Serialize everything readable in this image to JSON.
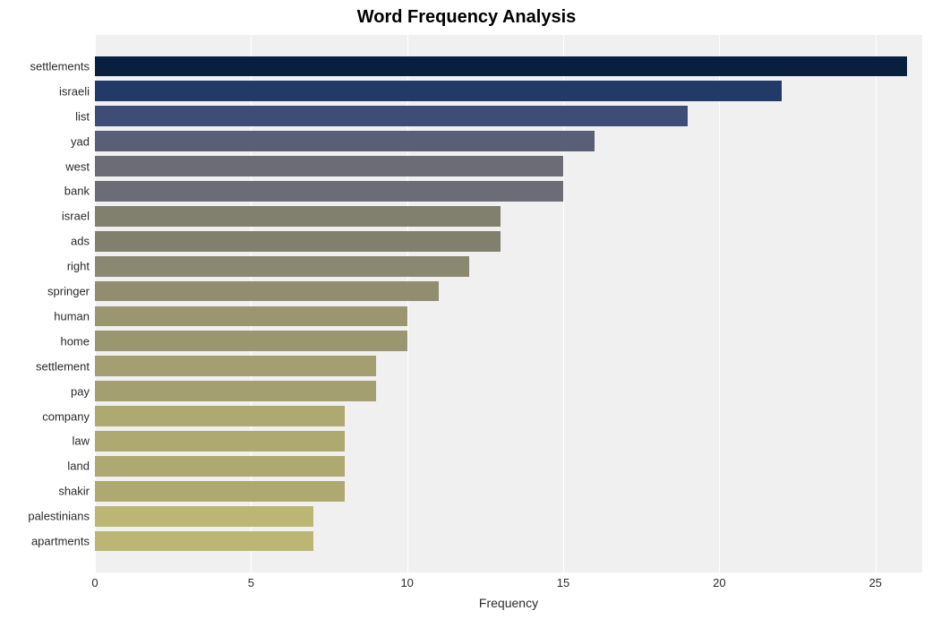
{
  "chart": {
    "type": "bar-horizontal",
    "title": "Word Frequency Analysis",
    "title_fontsize": 20,
    "title_fontweight": "700",
    "xlabel": "Frequency",
    "label_fontsize": 14,
    "tick_fontsize": 13,
    "background_color": "#ffffff",
    "plot_background": "#f0f0f0",
    "grid_color": "#ffffff",
    "xlim": [
      0,
      26.5
    ],
    "xticks": [
      0,
      5,
      10,
      15,
      20,
      25
    ],
    "bar_gap_ratio": 0.18,
    "categories": [
      "settlements",
      "israeli",
      "list",
      "yad",
      "west",
      "bank",
      "israel",
      "ads",
      "right",
      "springer",
      "human",
      "home",
      "settlement",
      "pay",
      "company",
      "law",
      "land",
      "shakir",
      "palestinians",
      "apartments"
    ],
    "values": [
      26,
      22,
      19,
      16,
      15,
      15,
      13,
      13,
      12,
      11,
      10,
      10,
      9,
      9,
      8,
      8,
      8,
      8,
      7,
      7
    ],
    "bar_colors": [
      "#081f3f",
      "#213a68",
      "#3e4d76",
      "#595f76",
      "#6c6c76",
      "#6c6c77",
      "#81806e",
      "#81806e",
      "#8a8870",
      "#908e6f",
      "#9a9670",
      "#9a9670",
      "#a39f70",
      "#a39f70",
      "#aea971",
      "#aea971",
      "#aea971",
      "#aea971",
      "#bcb675",
      "#bcb675"
    ],
    "plot_top_pad_ratio": 0.035,
    "plot_bottom_pad_ratio": 0.035
  }
}
